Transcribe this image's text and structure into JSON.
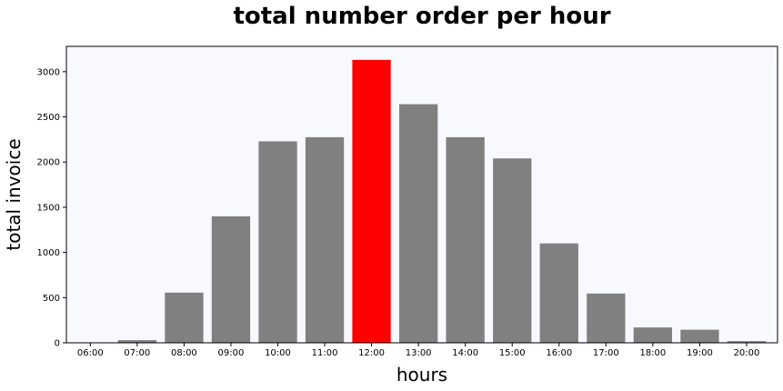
{
  "chart_data": {
    "type": "bar",
    "title": "total number order per hour",
    "xlabel": "hours",
    "ylabel": "total invoice",
    "categories": [
      "06:00",
      "07:00",
      "08:00",
      "09:00",
      "10:00",
      "11:00",
      "12:00",
      "13:00",
      "14:00",
      "15:00",
      "16:00",
      "17:00",
      "18:00",
      "19:00",
      "20:00"
    ],
    "values": [
      1,
      29,
      555,
      1400,
      2230,
      2275,
      3130,
      2640,
      2275,
      2040,
      1100,
      545,
      170,
      145,
      18
    ],
    "ylim": [
      0,
      3280
    ],
    "yticks": [
      0,
      500,
      1000,
      1500,
      2000,
      2500,
      3000
    ],
    "grid": false,
    "bar_color": "#808080",
    "highlight_color": "#ff0000",
    "highlight_category": "12:00",
    "plot_background": "#f8f8ff"
  }
}
